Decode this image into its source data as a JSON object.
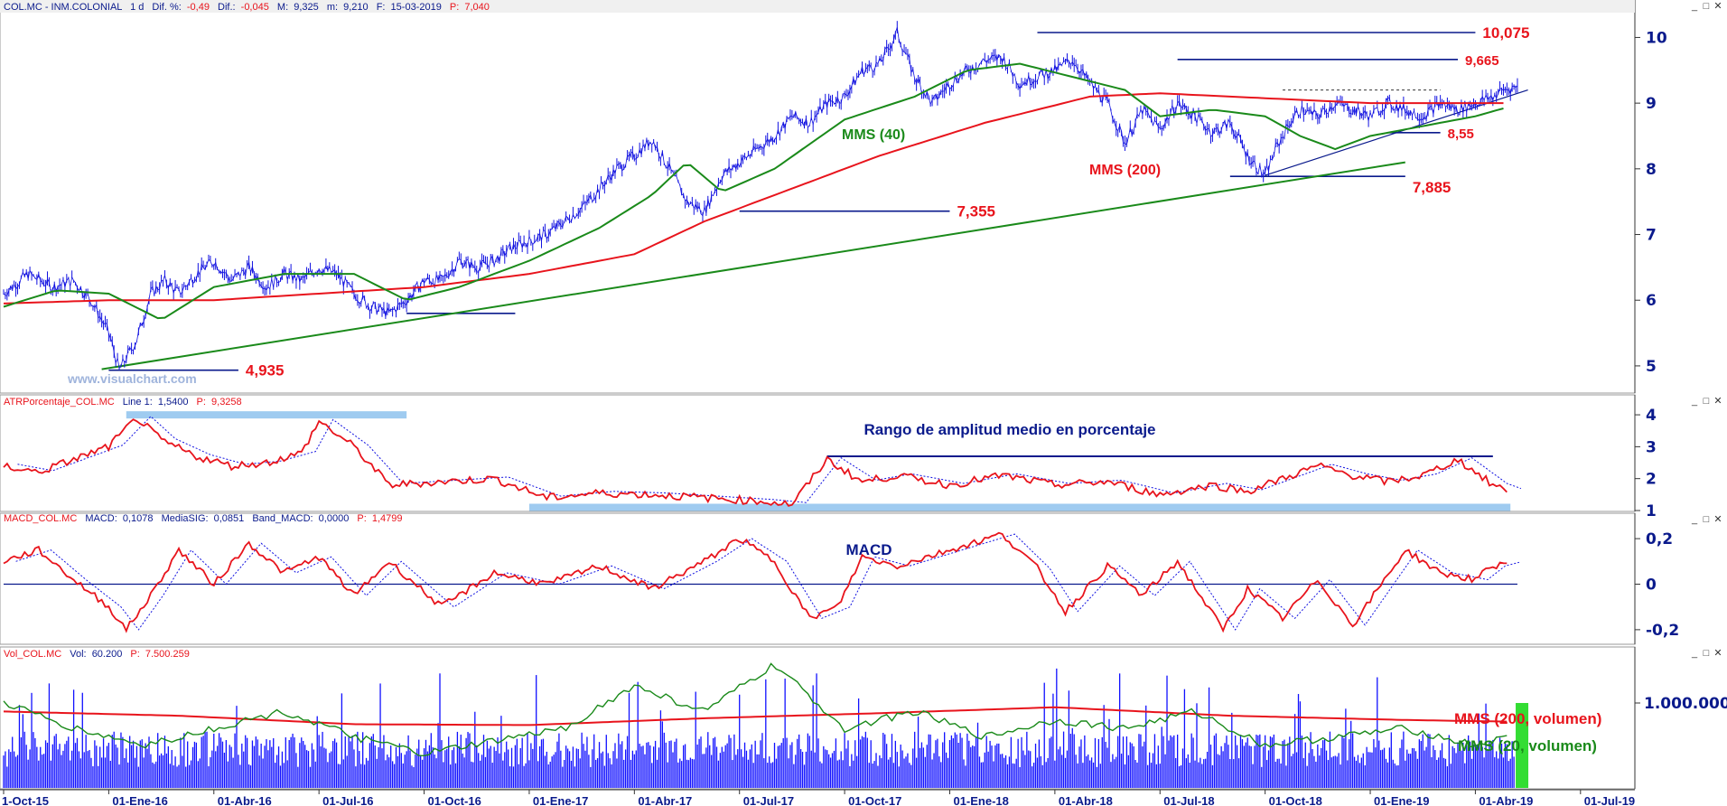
{
  "window": {
    "price_header": {
      "symbol": "COL.MC - INM.COLONIAL",
      "interval": "1 d",
      "dif_pct_label": "Dif. %:",
      "dif_pct": "-0,49",
      "dif_label": "Dif.:",
      "dif": "-0,045",
      "max_label": "M:",
      "max": "9,325",
      "min_label": "m:",
      "min": "9,210",
      "date_label": "F:",
      "date": "15-03-2019",
      "p_label": "P:",
      "p": "7,040"
    },
    "atr_header": {
      "name": "ATRPorcentaje_COL.MC",
      "line_label": "Line 1:",
      "line_value": "1,5400",
      "p_label": "P:",
      "p_value": "9,3258"
    },
    "macd_header": {
      "name": "MACD_COL.MC",
      "macd_label": "MACD:",
      "macd_value": "0,1078",
      "sig_label": "MediaSIG:",
      "sig_value": "0,0851",
      "band_label": "Band_MACD:",
      "band_value": "0,0000",
      "p_label": "P:",
      "p_value": "1,4799"
    },
    "vol_header": {
      "name": "Vol_COL.MC",
      "vol_label": "Vol:",
      "vol_value": "60.200",
      "p_label": "P:",
      "p_value": "7.500.259"
    },
    "controls": {
      "minimize": "_",
      "restore": "□",
      "close": "✕"
    }
  },
  "watermark": "www.visualchart.com",
  "colors": {
    "price": "#1010e0",
    "mms40": "#1a8a1a",
    "mms200": "#e8141c",
    "support": "#0a1a8c",
    "trend": "#1a8a1a",
    "band": "#9fcbf0",
    "axis": "#0a1a8c",
    "volume": "#1010ff",
    "volume_last": "#33dd33",
    "annotation_red": "#e8141c",
    "annotation_green": "#1a8a1a"
  },
  "chart_data": [
    {
      "type": "line",
      "panel": "price",
      "ylim": [
        4.6,
        10.35
      ],
      "y_ticks": [
        5,
        6,
        7,
        8,
        9,
        10
      ],
      "x_labels": [
        "1-Oct-15",
        "01-Ene-16",
        "01-Abr-16",
        "01-Jul-16",
        "01-Oct-16",
        "01-Ene-17",
        "01-Abr-17",
        "01-Jul-17",
        "01-Oct-17",
        "01-Ene-18",
        "01-Abr-18",
        "01-Jul-18",
        "01-Oct-18",
        "01-Ene-19",
        "01-Abr-19",
        "01-Jul-19"
      ],
      "x_range_months": [
        0,
        46.5
      ],
      "series": [
        {
          "key": "price",
          "x": [
            0,
            0.7,
            1.4,
            2.0,
            2.5,
            3.0,
            3.3,
            3.8,
            4.2,
            4.6,
            5.0,
            5.5,
            6.0,
            6.5,
            7.0,
            7.5,
            8.0,
            8.5,
            9.0,
            9.5,
            10.0,
            10.5,
            11.0,
            11.5,
            12.0,
            12.5,
            13.0,
            13.5,
            14.0,
            14.5,
            15.0,
            15.5,
            16.0,
            16.5,
            17.0,
            17.5,
            18.0,
            18.5,
            19.0,
            19.5,
            20.0,
            20.5,
            21.0,
            21.5,
            22.0,
            22.5,
            23.0,
            23.5,
            24.0,
            24.5,
            25.0,
            25.5,
            26.0,
            26.5,
            27.0,
            27.5,
            28.0,
            28.5,
            29.0,
            29.5,
            30.0,
            30.5,
            31.0,
            31.5,
            32.0,
            32.5,
            33.0,
            33.5,
            34.0,
            34.5,
            35.0,
            35.5,
            36.0,
            36.3,
            36.7,
            37.0,
            37.5,
            38.0,
            38.5,
            39.0,
            39.5,
            40.0,
            40.5,
            41.0,
            41.5,
            42.0,
            42.5,
            42.8,
            43.2
          ],
          "values": [
            6.1,
            6.4,
            6.2,
            6.3,
            6.0,
            5.5,
            4.935,
            5.4,
            6.1,
            6.3,
            6.1,
            6.4,
            6.6,
            6.3,
            6.5,
            6.2,
            6.4,
            6.3,
            6.5,
            6.4,
            6.1,
            5.9,
            5.8,
            6.0,
            6.3,
            6.3,
            6.6,
            6.5,
            6.6,
            6.8,
            6.9,
            7.0,
            7.2,
            7.4,
            7.7,
            8.0,
            8.2,
            8.45,
            8.0,
            7.5,
            7.355,
            7.9,
            8.1,
            8.3,
            8.5,
            8.8,
            8.7,
            9.0,
            9.1,
            9.5,
            9.6,
            10.075,
            9.4,
            9.0,
            9.3,
            9.5,
            9.65,
            9.7,
            9.3,
            9.4,
            9.5,
            9.665,
            9.3,
            9.0,
            8.4,
            8.9,
            8.6,
            9.0,
            8.8,
            8.55,
            8.7,
            8.2,
            7.885,
            8.3,
            8.7,
            8.9,
            8.8,
            9.0,
            8.9,
            8.8,
            9.0,
            8.9,
            8.8,
            9.0,
            8.9,
            9.0,
            9.1,
            9.2,
            9.25
          ]
        },
        {
          "key": "mms40",
          "name": "MMS (40)",
          "x": [
            0,
            1.5,
            3.0,
            4.5,
            6.0,
            8.0,
            10.0,
            11.5,
            13.0,
            15.0,
            17.0,
            18.5,
            19.5,
            20.5,
            22.0,
            24.0,
            26.0,
            27.5,
            29.0,
            30.5,
            32.0,
            33.0,
            34.5,
            36.0,
            37.0,
            38.0,
            39.0,
            40.0,
            41.0,
            42.0,
            43.0
          ],
          "values": [
            5.9,
            6.15,
            6.1,
            5.7,
            6.2,
            6.4,
            6.4,
            6.0,
            6.2,
            6.6,
            7.1,
            7.6,
            8.1,
            7.65,
            8.0,
            8.75,
            9.1,
            9.5,
            9.6,
            9.4,
            9.2,
            8.8,
            8.9,
            8.8,
            8.5,
            8.3,
            8.5,
            8.6,
            8.7,
            8.8,
            8.95
          ]
        },
        {
          "key": "mms200",
          "name": "MMS (200)",
          "x": [
            0,
            3.0,
            6.0,
            9.0,
            12.0,
            15.0,
            18.0,
            20.0,
            22.0,
            25.0,
            28.0,
            31.0,
            33.0,
            35.0,
            37.0,
            39.0,
            41.0,
            42.0,
            43.0
          ],
          "values": [
            5.95,
            6.0,
            6.0,
            6.1,
            6.2,
            6.4,
            6.7,
            7.2,
            7.6,
            8.2,
            8.7,
            9.1,
            9.15,
            9.1,
            9.05,
            9.0,
            9.0,
            9.0,
            9.0
          ]
        },
        {
          "key": "trend_support",
          "x": [
            2.8,
            40.0
          ],
          "values": [
            4.95,
            8.1
          ]
        },
        {
          "key": "trend_recent",
          "x": [
            36.0,
            43.5
          ],
          "values": [
            7.9,
            9.2
          ]
        }
      ],
      "levels": [
        {
          "value": 10.075,
          "label": "10,075",
          "x_from": 29.5,
          "x_to": 42.0
        },
        {
          "value": 9.665,
          "label": "9,665",
          "x_from": 33.5,
          "x_to": 41.5
        },
        {
          "value": 8.55,
          "label": "8,55",
          "x_from": 39.5,
          "x_to": 41.0
        },
        {
          "value": 7.885,
          "label": "7,885",
          "x_from": 35.0,
          "x_to": 40.0
        },
        {
          "value": 7.355,
          "label": "7,355",
          "x_from": 21.0,
          "x_to": 27.0
        },
        {
          "value": 4.935,
          "label": "4,935",
          "x_from": 3.0,
          "x_to": 6.7
        },
        {
          "value": 5.8,
          "label": "",
          "x_from": 11.5,
          "x_to": 14.6
        },
        {
          "value": 9.2,
          "label": "",
          "x_from": 36.5,
          "x_to": 41.0,
          "dashed": true
        }
      ],
      "annotations": [
        {
          "text": "MMS (40)",
          "color": "green"
        },
        {
          "text": "MMS (200)",
          "color": "red"
        }
      ]
    },
    {
      "type": "line",
      "panel": "atr",
      "title": "Rango de amplitud medio en porcentaje",
      "ylim": [
        1.0,
        4.2
      ],
      "y_ticks": [
        1,
        2,
        3,
        4
      ],
      "series": [
        {
          "key": "atr",
          "x": [
            0,
            1.0,
            2.0,
            3.0,
            3.8,
            4.5,
            5.5,
            6.5,
            7.5,
            8.5,
            9.0,
            10.0,
            11.0,
            12.5,
            14.0,
            15.5,
            17.0,
            18.5,
            20.0,
            21.5,
            22.5,
            23.5,
            24.5,
            25.5,
            27.0,
            28.5,
            30.0,
            31.5,
            33.0,
            34.5,
            35.5,
            36.5,
            37.5,
            38.5,
            39.5,
            40.5,
            41.5,
            42.5,
            43.0
          ],
          "values": [
            2.4,
            2.2,
            2.6,
            3.0,
            3.9,
            3.2,
            2.7,
            2.4,
            2.5,
            2.8,
            3.8,
            3.0,
            1.8,
            1.9,
            2.0,
            1.4,
            1.55,
            1.5,
            1.4,
            1.3,
            1.2,
            2.6,
            1.9,
            2.1,
            1.8,
            2.1,
            1.8,
            1.9,
            1.5,
            1.8,
            1.6,
            2.0,
            2.4,
            2.1,
            1.9,
            2.1,
            2.6,
            1.8,
            1.6
          ]
        }
      ],
      "bands": [
        {
          "value": 4.0,
          "x_from": 3.5,
          "x_to": 11.5,
          "color": "band"
        },
        {
          "value": 1.1,
          "x_from": 15.0,
          "x_to": 43.0,
          "color": "band"
        },
        {
          "value": 2.7,
          "x_from": 23.5,
          "x_to": 42.5,
          "color": "support"
        }
      ]
    },
    {
      "type": "line",
      "panel": "macd",
      "title": "MACD",
      "ylim": [
        -0.26,
        0.26
      ],
      "y_ticks": [
        0.2,
        0,
        -0.2
      ],
      "y_tick_labels": [
        "0,2",
        "0",
        "-0,2"
      ],
      "series": [
        {
          "key": "macd",
          "x": [
            0,
            1.0,
            2.0,
            3.0,
            3.5,
            4.2,
            5.0,
            6.0,
            7.0,
            8.0,
            9.0,
            10.0,
            11.0,
            12.5,
            14.0,
            15.5,
            17.0,
            18.5,
            20.0,
            21.0,
            22.0,
            23.0,
            23.8,
            24.5,
            25.5,
            27.0,
            28.5,
            29.5,
            30.3,
            31.5,
            32.5,
            33.5,
            34.8,
            35.5,
            36.5,
            37.5,
            38.5,
            40.0,
            41.0,
            42.0,
            42.5,
            43.0
          ],
          "values": [
            0.1,
            0.15,
            0.02,
            -0.1,
            -0.2,
            -0.05,
            0.15,
            0.0,
            0.18,
            0.05,
            0.12,
            -0.05,
            0.1,
            -0.1,
            0.05,
            0.0,
            0.08,
            -0.02,
            0.1,
            0.2,
            0.1,
            -0.15,
            -0.1,
            0.12,
            0.08,
            0.15,
            0.22,
            0.07,
            -0.12,
            0.08,
            -0.05,
            0.1,
            -0.2,
            -0.02,
            -0.15,
            0.02,
            -0.18,
            0.15,
            0.05,
            0.02,
            0.08,
            0.1
          ]
        }
      ],
      "zero_line": true
    },
    {
      "type": "bar",
      "panel": "volume",
      "ylim": [
        0,
        1500000
      ],
      "y_ticks": [
        1000000
      ],
      "y_tick_labels": [
        "1.000.000"
      ],
      "series": [
        {
          "key": "mms200_vol",
          "name": "MMS (200, volumen)",
          "x": [
            0,
            5,
            10,
            15,
            20,
            25,
            30,
            35,
            40,
            43
          ],
          "values": [
            900000,
            850000,
            750000,
            740000,
            820000,
            880000,
            950000,
            850000,
            800000,
            780000
          ]
        },
        {
          "key": "mms20_vol",
          "name": "MMS (20, volumen)",
          "x": [
            0,
            2,
            4,
            6,
            8,
            10,
            12,
            14,
            16,
            18,
            20,
            22,
            24,
            26,
            28,
            30,
            32,
            34,
            36,
            38,
            40,
            42,
            43
          ],
          "values": [
            1000000,
            700000,
            500000,
            700000,
            900000,
            600000,
            400000,
            550000,
            700000,
            1200000,
            900000,
            1450000,
            700000,
            900000,
            600000,
            800000,
            700000,
            900000,
            500000,
            600000,
            700000,
            500000,
            600000
          ]
        }
      ],
      "bars_summary": {
        "typical": 700000,
        "peak": 1450000,
        "last": 1000000
      }
    }
  ]
}
